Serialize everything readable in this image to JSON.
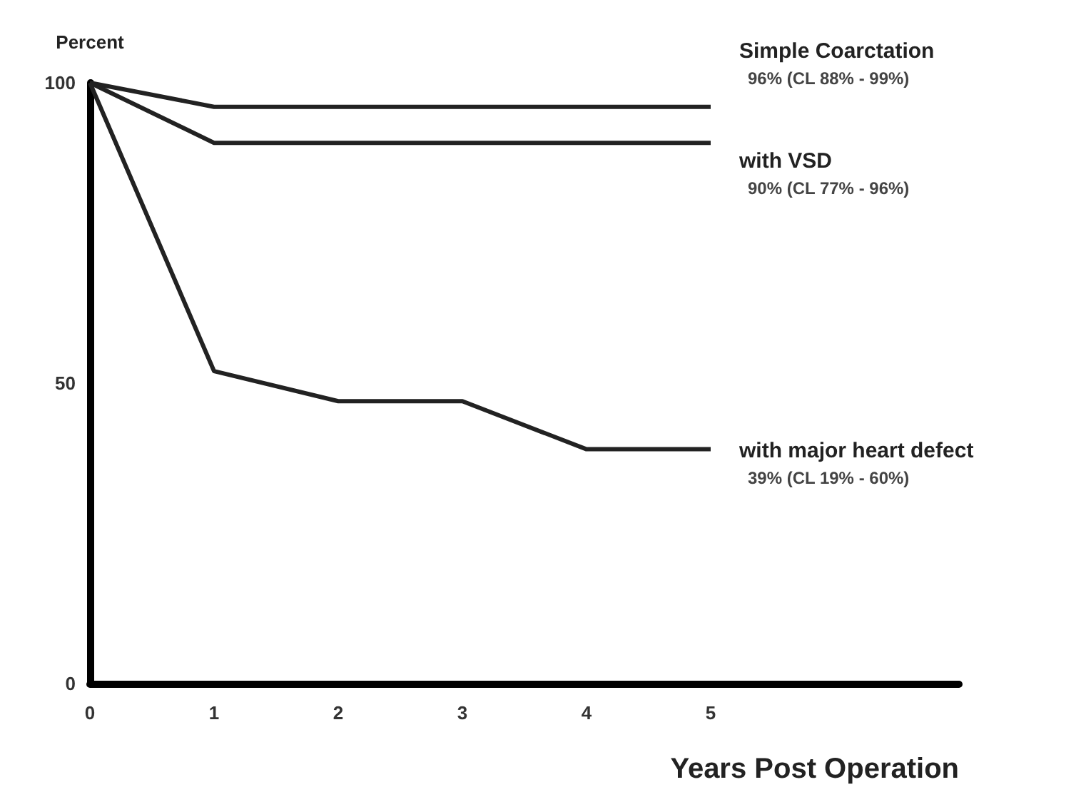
{
  "chart_data": {
    "type": "line",
    "xlabel": "Years Post Operation",
    "ylabel": "Percent",
    "x": [
      0,
      1,
      2,
      3,
      4,
      5
    ],
    "series": [
      {
        "name": "Simple Coarctation",
        "color": "#222222",
        "values": [
          100,
          96,
          96,
          96,
          96,
          96
        ]
      },
      {
        "name": "with VSD",
        "color": "#222222",
        "values": [
          100,
          90,
          90,
          90,
          90,
          90
        ]
      },
      {
        "name": "with major heart defect",
        "color": "#222222",
        "values": [
          100,
          52,
          47,
          47,
          39,
          39
        ]
      }
    ],
    "annotations": [
      "96% (CL 88% - 99%)",
      "90% (CL 77% - 96%)",
      "39% (CL 19% - 60%)"
    ],
    "xlim": [
      0,
      7
    ],
    "xticks": [
      0,
      1,
      2,
      3,
      4,
      5
    ],
    "ylim": [
      0,
      100
    ],
    "yticks": [
      0,
      50,
      100
    ],
    "grid": false,
    "legend": false,
    "marker": "none",
    "line_style": "solid"
  }
}
